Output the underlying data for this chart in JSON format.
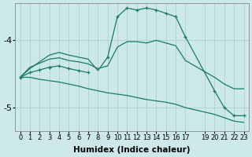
{
  "xlabel": "Humidex (Indice chaleur)",
  "bg_color": "#cce8e8",
  "line_color": "#1a7a6a",
  "grid_color": "#aacccc",
  "xlim": [
    -0.5,
    23.5
  ],
  "ylim": [
    -5.35,
    -3.45
  ],
  "yticks": [
    -5,
    -4
  ],
  "x_tick_positions": [
    0,
    1,
    2,
    3,
    4,
    5,
    6,
    7,
    8,
    9,
    10,
    11,
    12,
    13,
    14,
    15,
    16,
    17,
    19,
    20,
    21,
    22,
    23
  ],
  "upper_bell": {
    "x": [
      0,
      1,
      2,
      3,
      4,
      5,
      6,
      7,
      8,
      9,
      10,
      11,
      12,
      13,
      14,
      15,
      16,
      17,
      20,
      21,
      22,
      23
    ],
    "y": [
      -4.55,
      -4.42,
      -4.32,
      -4.22,
      -4.18,
      -4.22,
      -4.25,
      -4.28,
      -4.45,
      -4.25,
      -3.65,
      -3.52,
      -3.55,
      -3.52,
      -3.55,
      -3.6,
      -3.65,
      -3.95,
      -4.75,
      -5.0,
      -5.12,
      -5.12
    ]
  },
  "mid_line": {
    "x": [
      0,
      1,
      2,
      3,
      4,
      5,
      6,
      7,
      8,
      9,
      10,
      11,
      12,
      13,
      14,
      15,
      16,
      17,
      20,
      21,
      22,
      23
    ],
    "y": [
      -4.55,
      -4.4,
      -4.34,
      -4.28,
      -4.26,
      -4.3,
      -4.32,
      -4.35,
      -4.42,
      -4.38,
      -4.1,
      -4.02,
      -4.02,
      -4.04,
      -4.0,
      -4.04,
      -4.08,
      -4.3,
      -4.55,
      -4.65,
      -4.72,
      -4.72
    ]
  },
  "lower_diag": {
    "x": [
      0,
      1,
      2,
      3,
      4,
      5,
      6,
      7,
      8,
      9,
      10,
      11,
      12,
      13,
      14,
      15,
      16,
      17,
      20,
      21,
      22,
      23
    ],
    "y": [
      -4.55,
      -4.55,
      -4.58,
      -4.6,
      -4.62,
      -4.65,
      -4.68,
      -4.72,
      -4.75,
      -4.78,
      -4.8,
      -4.82,
      -4.85,
      -4.88,
      -4.9,
      -4.92,
      -4.95,
      -5.0,
      -5.1,
      -5.15,
      -5.2,
      -5.22
    ]
  },
  "marker_points_upper": {
    "x": [
      0,
      1,
      2,
      3,
      4,
      5,
      6,
      7,
      8,
      9,
      10,
      11,
      12,
      13,
      14,
      15,
      16,
      17,
      20,
      21,
      22,
      23
    ],
    "y": [
      -4.55,
      -4.42,
      -4.32,
      -4.22,
      -4.18,
      -4.22,
      -4.25,
      -4.28,
      -4.45,
      -4.25,
      -3.65,
      -3.52,
      -3.55,
      -3.52,
      -3.55,
      -3.6,
      -3.65,
      -3.95,
      -4.75,
      -5.0,
      -5.12,
      -5.12
    ]
  },
  "marker_points_left": {
    "x": [
      0,
      1,
      2,
      3,
      4,
      5,
      6,
      7
    ],
    "y": [
      -4.55,
      -4.48,
      -4.44,
      -4.4,
      -4.38,
      -4.42,
      -4.45,
      -4.48
    ]
  }
}
